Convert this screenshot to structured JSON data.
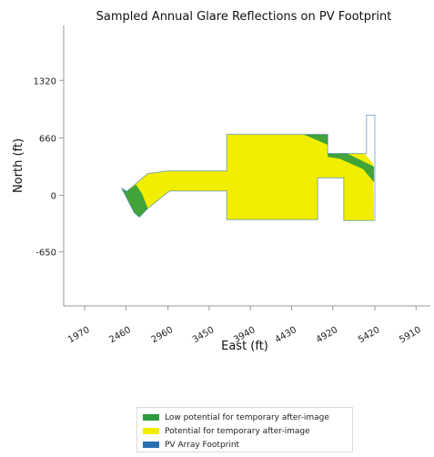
{
  "chart_data": {
    "type": "area",
    "title": "Sampled Annual Glare Reflections on PV Footprint",
    "xlabel": "East (ft)",
    "ylabel": "North (ft)",
    "xlim": [
      1720,
      6080
    ],
    "ylim": [
      -1270,
      1950
    ],
    "x_ticks": [
      1970,
      2460,
      2960,
      3450,
      3940,
      4430,
      4920,
      5420,
      5910
    ],
    "y_ticks": [
      1320,
      660,
      0,
      -650
    ],
    "grid": false,
    "legend_position": "bottom",
    "legend": [
      {
        "label": "Low potential for temporary after-image",
        "color": "#2e9a3e"
      },
      {
        "label": "Potential for temporary after-image",
        "color": "#f2ee00"
      },
      {
        "label": "PV Array Footprint",
        "color": "#2a6fb0"
      }
    ],
    "regions": [
      {
        "name": "PV Array Footprint",
        "polygon": [
          [
            2410,
            80
          ],
          [
            2470,
            45
          ],
          [
            2720,
            250
          ],
          [
            2960,
            280
          ],
          [
            3660,
            280
          ],
          [
            3660,
            700
          ],
          [
            4860,
            700
          ],
          [
            4860,
            480
          ],
          [
            5320,
            480
          ],
          [
            5320,
            920
          ],
          [
            5420,
            920
          ],
          [
            5420,
            -290
          ],
          [
            5050,
            -290
          ],
          [
            5050,
            200
          ],
          [
            4740,
            200
          ],
          [
            4740,
            -280
          ],
          [
            3660,
            -280
          ],
          [
            3660,
            50
          ],
          [
            2980,
            50
          ],
          [
            2720,
            -150
          ],
          [
            2620,
            -250
          ],
          [
            2560,
            -200
          ]
        ]
      },
      {
        "name": "Potential for temporary after-image",
        "polygon": [
          [
            2410,
            80
          ],
          [
            2470,
            45
          ],
          [
            2720,
            250
          ],
          [
            2960,
            280
          ],
          [
            3660,
            280
          ],
          [
            3660,
            700
          ],
          [
            4860,
            700
          ],
          [
            4860,
            480
          ],
          [
            5300,
            480
          ],
          [
            5400,
            360
          ],
          [
            5410,
            -290
          ],
          [
            5050,
            -290
          ],
          [
            5050,
            200
          ],
          [
            4740,
            200
          ],
          [
            4740,
            -280
          ],
          [
            3660,
            -280
          ],
          [
            3660,
            50
          ],
          [
            2980,
            50
          ],
          [
            2720,
            -150
          ],
          [
            2620,
            -250
          ],
          [
            2560,
            -200
          ]
        ]
      },
      {
        "name": "Low potential for temporary after-image",
        "polygon": [
          [
            4570,
            700
          ],
          [
            4860,
            700
          ],
          [
            4860,
            580
          ]
        ]
      },
      {
        "name": "Low potential for temporary after-image",
        "polygon": [
          [
            4860,
            480
          ],
          [
            5090,
            480
          ],
          [
            5410,
            330
          ],
          [
            5410,
            150
          ],
          [
            5280,
            300
          ],
          [
            5000,
            420
          ],
          [
            4860,
            440
          ]
        ]
      },
      {
        "name": "Low potential for temporary after-image",
        "polygon": [
          [
            2410,
            80
          ],
          [
            2470,
            45
          ],
          [
            2580,
            120
          ],
          [
            2650,
            20
          ],
          [
            2720,
            -150
          ],
          [
            2620,
            -250
          ],
          [
            2560,
            -200
          ]
        ]
      }
    ]
  }
}
